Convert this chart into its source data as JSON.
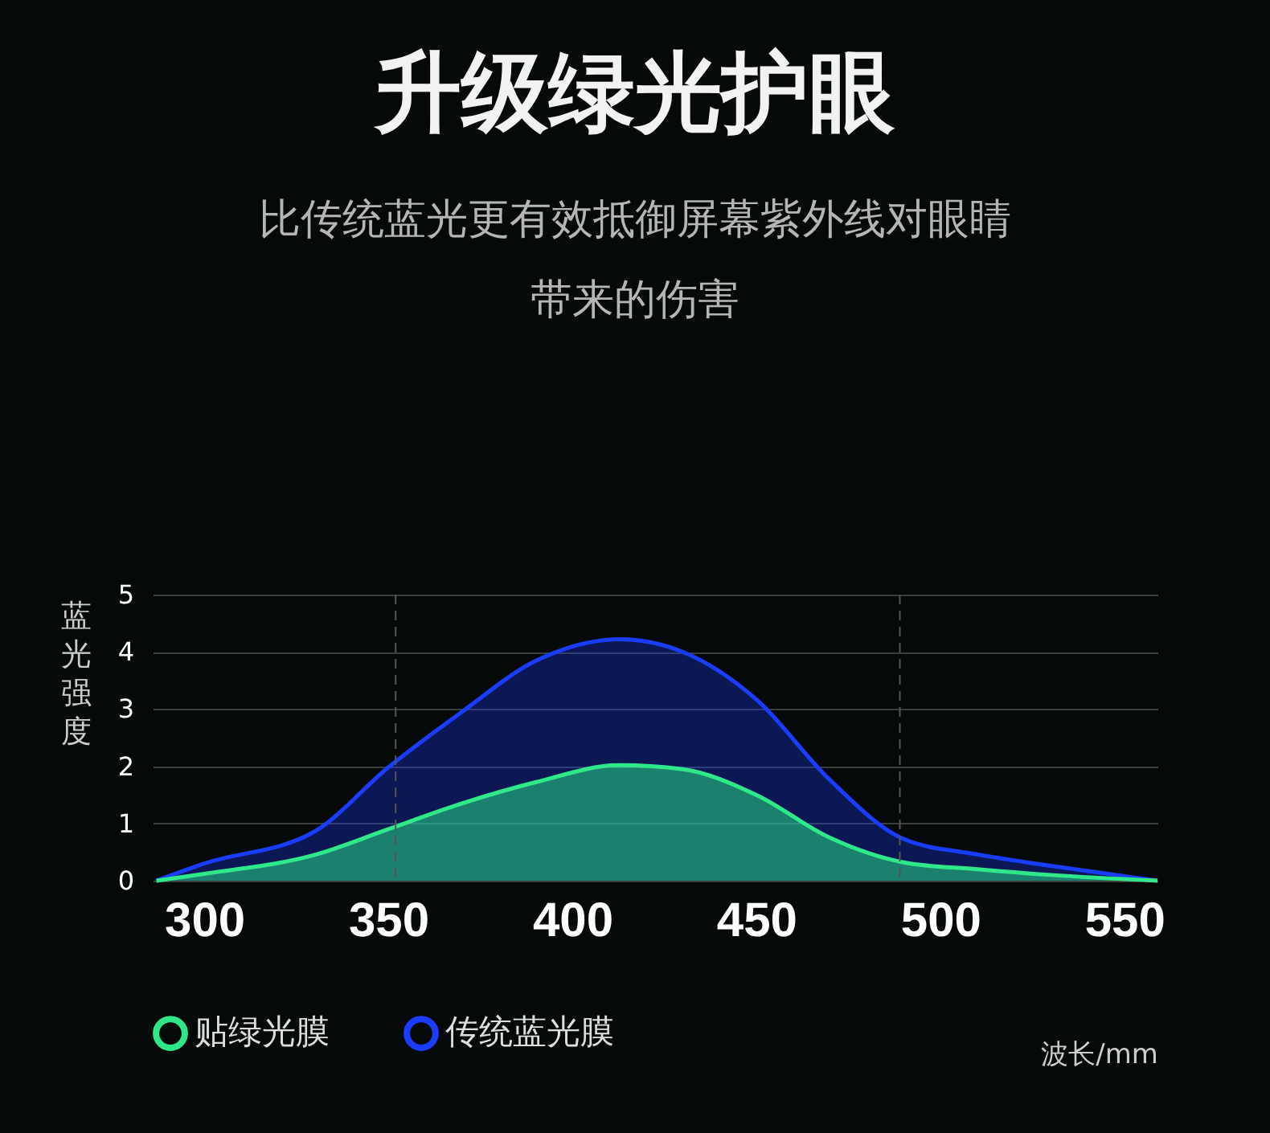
{
  "chart_data": {
    "type": "area",
    "title": "升级绿光护眼",
    "subtitle": "比传统蓝光更有效抵御屏幕紫外线对眼睛带来的伤害",
    "xlabel": "波长/mm",
    "ylabel": "蓝光强度",
    "x": [
      287,
      300,
      330,
      350,
      370,
      390,
      413,
      430,
      450,
      470,
      490,
      510,
      530,
      559
    ],
    "series": [
      {
        "name": "传统蓝光膜",
        "color": "#1a3cff",
        "values": [
          0,
          0.3,
          0.86,
          1.98,
          2.95,
          3.84,
          4.22,
          4.0,
          3.17,
          1.76,
          0.73,
          0.46,
          0.26,
          0
        ]
      },
      {
        "name": "贴绿光膜",
        "color": "#2ee88a",
        "values": [
          0,
          0.12,
          0.45,
          0.9,
          1.35,
          1.72,
          2.02,
          1.95,
          1.5,
          0.75,
          0.32,
          0.2,
          0.1,
          0
        ]
      }
    ],
    "xlim": [
      286,
      559
    ],
    "xticks": [
      300,
      350,
      400,
      450,
      500,
      550
    ],
    "ylim": [
      0,
      5
    ],
    "yticks": [
      0,
      1,
      2,
      3,
      4,
      5
    ],
    "grid": "y",
    "legend": "bottom left",
    "line_style": "solid",
    "ref_lines": [
      {
        "axis": "x",
        "value": 352,
        "line_style": "dashed"
      },
      {
        "axis": "x",
        "value": 489,
        "line_style": "dashed"
      }
    ]
  }
}
